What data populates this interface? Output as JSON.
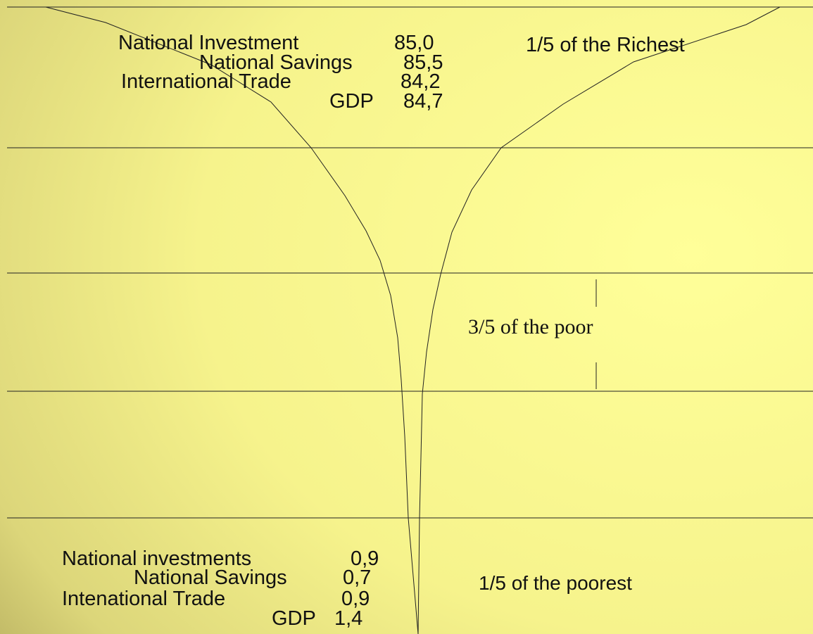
{
  "top_group": {
    "items": [
      {
        "label": "National Investment",
        "value": "85,0"
      },
      {
        "label": "National Savings",
        "value": "85,5"
      },
      {
        "label": "International Trade",
        "value": "84,2"
      },
      {
        "label": "GDP",
        "value": "84,7"
      }
    ]
  },
  "bottom_group": {
    "items": [
      {
        "label": "National investments",
        "value": "0,9"
      },
      {
        "label": "National Savings",
        "value": "0,7"
      },
      {
        "label": "Intenational Trade",
        "value": "0,9"
      },
      {
        "label": "GDP",
        "value": "1,4"
      }
    ]
  },
  "regions": {
    "richest": "1/5 of the Richest",
    "poor": "3/5 of the poor",
    "poorest": "1/5 of the poorest"
  }
}
